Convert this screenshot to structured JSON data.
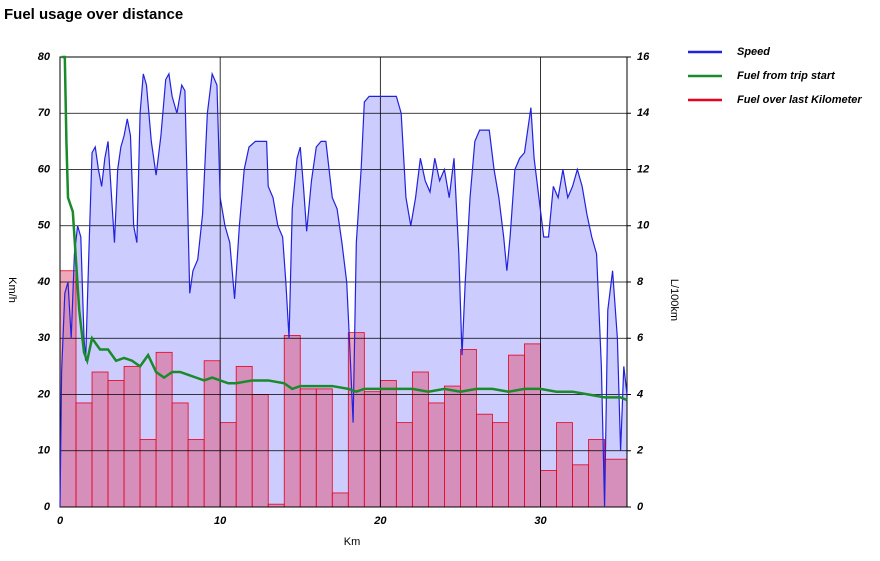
{
  "chart_data": {
    "type": "line",
    "title": "Fuel usage over distance",
    "x_label": "Km",
    "y_label": "Km/h",
    "y2_label": "L/100km",
    "xlim": [
      0,
      35.4
    ],
    "xticks": [
      0,
      10,
      20,
      30
    ],
    "ylim": [
      0,
      80
    ],
    "yticks": [
      0,
      10,
      20,
      30,
      40,
      50,
      60,
      70,
      80
    ],
    "y2lim": [
      0,
      16
    ],
    "y2ticks": [
      0,
      2,
      4,
      6,
      8,
      10,
      12,
      14,
      16
    ],
    "grid": true,
    "legend": "right",
    "series": [
      {
        "name": "Speed",
        "type": "area",
        "color": "#2222dd",
        "fill": "#ccccff",
        "x": [
          0.0,
          0.1,
          0.3,
          0.5,
          0.7,
          0.9,
          1.1,
          1.3,
          1.5,
          1.6,
          1.8,
          2.0,
          2.2,
          2.4,
          2.6,
          2.8,
          3.0,
          3.2,
          3.4,
          3.6,
          3.8,
          4.0,
          4.2,
          4.4,
          4.6,
          4.8,
          5.0,
          5.2,
          5.4,
          5.7,
          6.0,
          6.3,
          6.6,
          6.8,
          7.0,
          7.3,
          7.6,
          7.8,
          8.0,
          8.1,
          8.3,
          8.6,
          8.9,
          9.2,
          9.5,
          9.8,
          10.0,
          10.3,
          10.6,
          10.9,
          11.2,
          11.5,
          11.8,
          12.2,
          12.6,
          12.9,
          13.0,
          13.3,
          13.6,
          13.9,
          14.1,
          14.3,
          14.5,
          14.8,
          15.0,
          15.2,
          15.4,
          15.7,
          16.0,
          16.3,
          16.6,
          16.8,
          17.0,
          17.3,
          17.6,
          17.9,
          18.1,
          18.3,
          18.5,
          18.8,
          19.0,
          19.3,
          20.0,
          20.5,
          21.0,
          21.3,
          21.6,
          21.9,
          22.2,
          22.5,
          22.8,
          23.1,
          23.4,
          23.7,
          24.0,
          24.3,
          24.6,
          24.9,
          25.1,
          25.3,
          25.6,
          25.9,
          26.2,
          26.8,
          27.1,
          27.4,
          27.7,
          27.9,
          28.1,
          28.4,
          28.7,
          29.0,
          29.2,
          29.4,
          29.6,
          29.9,
          30.2,
          30.5,
          30.8,
          31.1,
          31.4,
          31.7,
          32.0,
          32.3,
          32.6,
          32.9,
          33.2,
          33.5,
          33.8,
          34.0,
          34.2,
          34.5,
          34.8,
          35.0,
          35.2,
          35.4
        ],
        "values": [
          0,
          24,
          38,
          40,
          30,
          45,
          50,
          48,
          30,
          26,
          45,
          63,
          64,
          60,
          57,
          62,
          65,
          56,
          47,
          60,
          64,
          66,
          69,
          66,
          50,
          47,
          70,
          77,
          75,
          65,
          59,
          66,
          76,
          77,
          73,
          70,
          75,
          74,
          50,
          38,
          42,
          44,
          52,
          70,
          77,
          75,
          55,
          50,
          47,
          37,
          50,
          60,
          64,
          65,
          65,
          65,
          57,
          55,
          50,
          48,
          40,
          30,
          53,
          62,
          64,
          57,
          49,
          58,
          64,
          65,
          65,
          60,
          55,
          53,
          47,
          40,
          28,
          15,
          47,
          60,
          72,
          73,
          73,
          73,
          73,
          70,
          55,
          50,
          55,
          62,
          58,
          56,
          62,
          58,
          60,
          55,
          62,
          45,
          27,
          40,
          55,
          65,
          67,
          67,
          60,
          55,
          48,
          42,
          48,
          60,
          62,
          63,
          67,
          71,
          62,
          55,
          48,
          48,
          57,
          55,
          60,
          55,
          57,
          60,
          57,
          52,
          48,
          45,
          25,
          0,
          35,
          42,
          30,
          10,
          25,
          20
        ]
      },
      {
        "name": "Fuel from trip start",
        "type": "line",
        "axis": "y2",
        "color": "#1a8a2a",
        "x": [
          0.1,
          0.3,
          0.4,
          0.5,
          0.8,
          1.2,
          1.5,
          1.7,
          2.0,
          2.5,
          3.0,
          3.5,
          4.0,
          4.5,
          5.0,
          5.5,
          6.0,
          6.5,
          7.0,
          7.5,
          8.0,
          8.5,
          9.0,
          9.5,
          10.5,
          11.0,
          12.0,
          13.0,
          14.0,
          14.5,
          15.0,
          16.0,
          17.0,
          18.0,
          18.5,
          19.0,
          21.0,
          22.0,
          23.0,
          24.0,
          25.0,
          26.0,
          27.0,
          28.0,
          29.0,
          30.0,
          31.0,
          32.0,
          33.0,
          34.0,
          35.0,
          35.4
        ],
        "values": [
          16,
          16,
          13,
          11,
          10.5,
          7,
          5.5,
          5.2,
          6,
          5.6,
          5.6,
          5.2,
          5.3,
          5.2,
          5.0,
          5.4,
          4.8,
          4.6,
          4.8,
          4.8,
          4.7,
          4.6,
          4.5,
          4.6,
          4.4,
          4.4,
          4.5,
          4.5,
          4.4,
          4.2,
          4.3,
          4.3,
          4.3,
          4.2,
          4.1,
          4.2,
          4.2,
          4.2,
          4.1,
          4.2,
          4.1,
          4.2,
          4.2,
          4.1,
          4.2,
          4.2,
          4.1,
          4.1,
          4.0,
          3.9,
          3.9,
          3.8
        ]
      },
      {
        "name": "Fuel over last Kilometer",
        "type": "bar",
        "axis": "y2",
        "color": "#e8001c",
        "fill": "#e0507880",
        "bins": [
          0,
          1,
          2,
          3,
          4,
          5,
          6,
          7,
          8,
          9,
          10,
          11,
          12,
          13,
          14,
          15,
          16,
          17,
          18,
          19,
          20,
          21,
          22,
          23,
          24,
          25,
          26,
          27,
          28,
          29,
          30,
          31,
          32,
          33,
          34,
          35.4
        ],
        "values": [
          8.4,
          3.7,
          4.8,
          4.5,
          5.0,
          2.4,
          5.5,
          3.7,
          2.4,
          5.2,
          3.0,
          5.0,
          4.0,
          0.1,
          6.1,
          4.2,
          4.2,
          0.5,
          6.2,
          4.1,
          4.5,
          3.0,
          4.8,
          3.7,
          4.3,
          5.6,
          3.3,
          3.0,
          5.4,
          5.8,
          1.3,
          3.0,
          1.5,
          2.4,
          1.7
        ]
      }
    ]
  }
}
